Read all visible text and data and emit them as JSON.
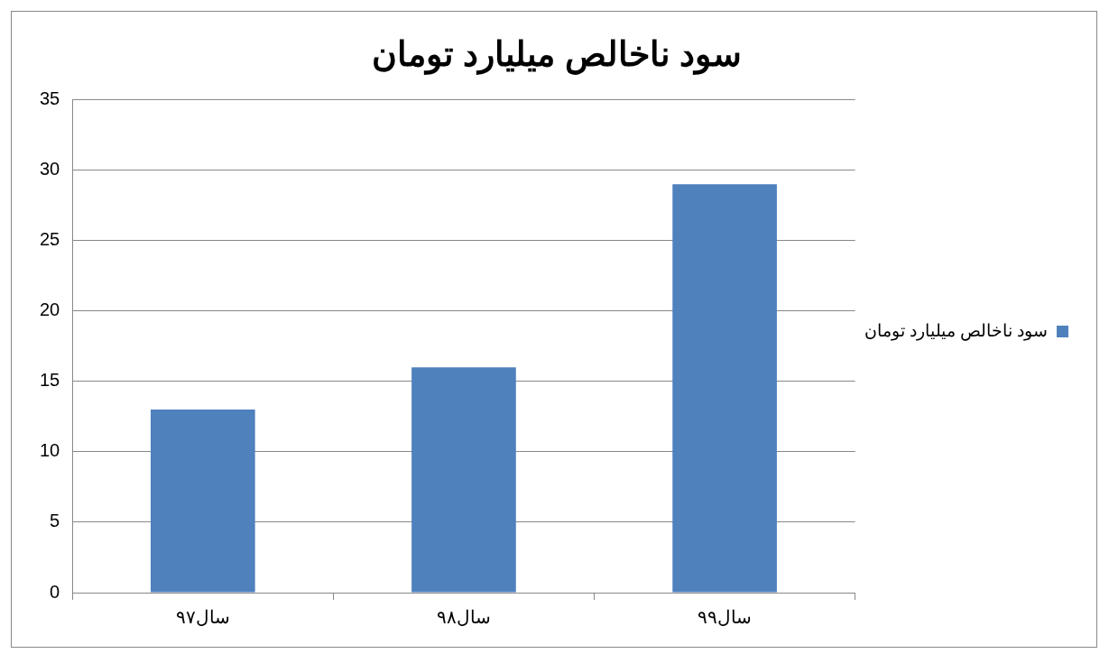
{
  "chart_data": {
    "type": "bar",
    "title": "سود ناخالص میلیارد تومان",
    "categories": [
      "سال۹۷",
      "سال۹۸",
      "سال۹۹"
    ],
    "series": [
      {
        "name": "سود ناخالص میلیارد تومان",
        "color": "#4f81bd",
        "values": [
          13,
          16,
          29
        ]
      }
    ],
    "ylim": [
      0,
      35
    ],
    "yticks": [
      0,
      5,
      10,
      15,
      20,
      25,
      30,
      35
    ],
    "grid": "y",
    "legend": "right"
  }
}
